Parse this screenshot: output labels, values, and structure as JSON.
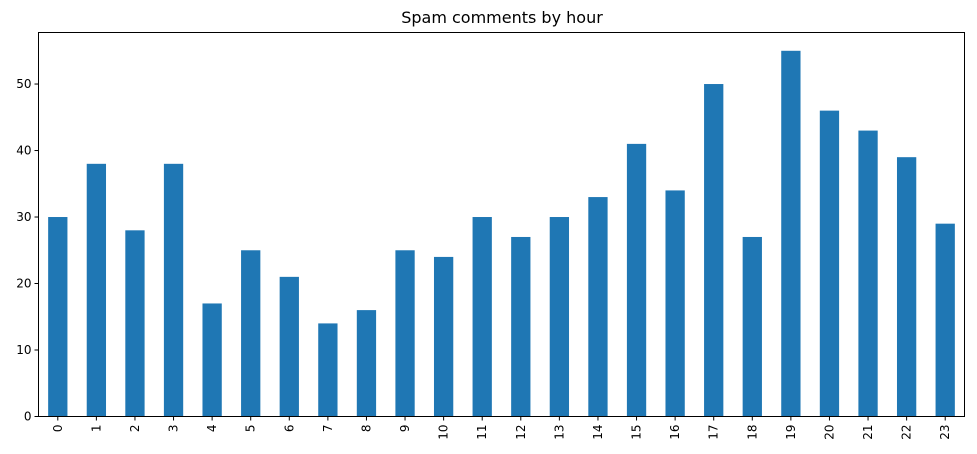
{
  "chart_data": {
    "type": "bar",
    "title": "Spam comments by hour",
    "xlabel": "",
    "ylabel": "",
    "categories": [
      "0",
      "1",
      "2",
      "3",
      "4",
      "5",
      "6",
      "7",
      "8",
      "9",
      "10",
      "11",
      "12",
      "13",
      "14",
      "15",
      "16",
      "17",
      "18",
      "19",
      "20",
      "21",
      "22",
      "23"
    ],
    "values": [
      30,
      38,
      28,
      38,
      17,
      25,
      21,
      14,
      16,
      25,
      24,
      30,
      27,
      30,
      33,
      41,
      34,
      50,
      27,
      55,
      46,
      43,
      39,
      29
    ],
    "ylim": [
      0,
      57.75
    ],
    "yticks": [
      0,
      10,
      20,
      30,
      40,
      50
    ],
    "grid": false,
    "legend": "none",
    "bar_color": "#1f77b4",
    "x_tick_rotation": "vertical"
  }
}
